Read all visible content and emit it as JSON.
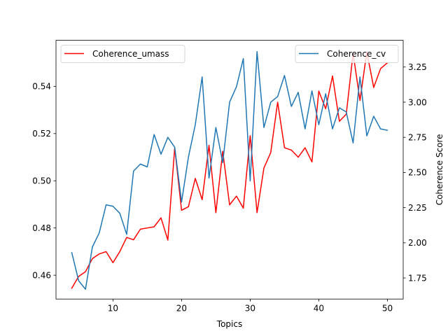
{
  "chart_data": {
    "type": "line",
    "xlabel": "Topics",
    "ylabel_left": "",
    "ylabel_right": "Coherence Score",
    "xlim": [
      1.7,
      52.3
    ],
    "ylim_left": [
      0.4499,
      0.5595
    ],
    "ylim_right": [
      1.6,
      3.44
    ],
    "xticks": [
      10,
      20,
      30,
      40,
      50
    ],
    "yticks_left": [
      0.46,
      0.48,
      0.5,
      0.52,
      0.54
    ],
    "yticks_left_labels": [
      "0.46",
      "0.48",
      "0.50",
      "0.52",
      "0.54"
    ],
    "yticks_right": [
      1.75,
      2.0,
      2.25,
      2.5,
      2.75,
      3.0,
      3.25
    ],
    "yticks_right_labels": [
      "1.75",
      "2.00",
      "2.25",
      "2.50",
      "2.75",
      "3.00",
      "3.25"
    ],
    "grid": false,
    "x": [
      4,
      5,
      6,
      7,
      8,
      9,
      10,
      11,
      12,
      13,
      14,
      15,
      16,
      17,
      18,
      19,
      20,
      21,
      22,
      23,
      24,
      25,
      26,
      27,
      28,
      29,
      30,
      31,
      32,
      33,
      34,
      35,
      36,
      37,
      38,
      39,
      40,
      41,
      42,
      43,
      44,
      45,
      46,
      47,
      48,
      49,
      50
    ],
    "series": [
      {
        "name": "Coherence_umass",
        "axis": "left",
        "color": "#ff0000",
        "legend_position": "upper left",
        "values": [
          0.4545,
          0.4595,
          0.4615,
          0.467,
          0.469,
          0.47,
          0.4653,
          0.47,
          0.476,
          0.475,
          0.4795,
          0.48,
          0.4805,
          0.4843,
          0.4749,
          0.514,
          0.4875,
          0.489,
          0.501,
          0.492,
          0.515,
          0.4865,
          0.5125,
          0.4898,
          0.4935,
          0.4884,
          0.5191,
          0.4865,
          0.5054,
          0.512,
          0.5333,
          0.514,
          0.513,
          0.51,
          0.514,
          0.508,
          0.538,
          0.5305,
          0.5444,
          0.5252,
          0.5282,
          0.554,
          0.534,
          0.5546,
          0.5395,
          0.5475,
          0.55
        ]
      },
      {
        "name": "Coherence_cv",
        "axis": "right",
        "color": "#1f77b4",
        "legend_position": "upper right",
        "values": [
          1.93,
          1.73,
          1.67,
          1.97,
          2.07,
          2.27,
          2.26,
          2.21,
          2.06,
          2.51,
          2.56,
          2.54,
          2.77,
          2.63,
          2.75,
          2.68,
          2.29,
          2.61,
          2.84,
          3.18,
          2.46,
          2.82,
          2.57,
          3.0,
          3.11,
          3.31,
          2.44,
          3.36,
          2.82,
          3.0,
          3.04,
          3.19,
          2.97,
          3.07,
          2.81,
          3.08,
          2.84,
          3.06,
          2.81,
          2.96,
          2.93,
          2.71,
          3.18,
          2.76,
          2.9,
          2.81,
          2.8
        ]
      }
    ]
  }
}
